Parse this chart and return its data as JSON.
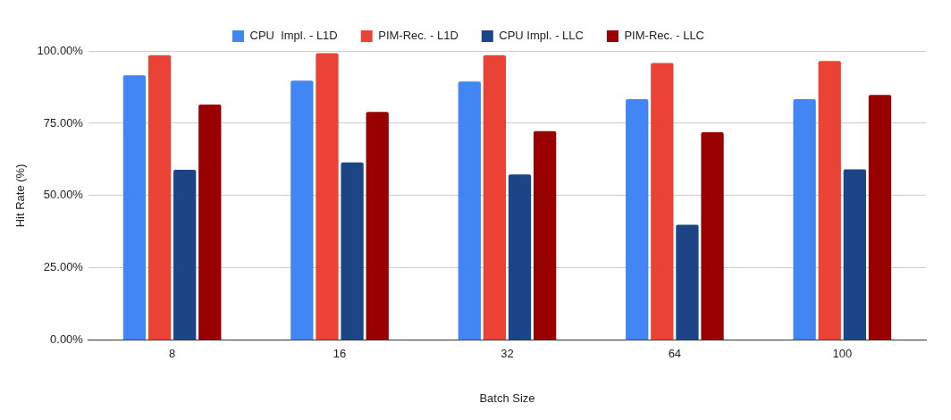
{
  "chart_data": {
    "type": "bar",
    "xlabel": "Batch Size",
    "ylabel": "Hit Rate (%)",
    "categories": [
      "8",
      "16",
      "32",
      "64",
      "100"
    ],
    "series": [
      {
        "name": "CPU  Impl. - L1D",
        "color": "#4285f4",
        "values": [
          91.6,
          89.7,
          89.4,
          83.3,
          83.3
        ]
      },
      {
        "name": "PIM-Rec. - L1D",
        "color": "#ea4335",
        "values": [
          98.5,
          99.2,
          98.5,
          95.8,
          96.5
        ]
      },
      {
        "name": "CPU Impl. - LLC",
        "color": "#1c4587",
        "values": [
          58.9,
          61.5,
          57.3,
          39.9,
          59.1
        ]
      },
      {
        "name": "PIM-Rec. - LLC",
        "color": "#990000",
        "values": [
          81.5,
          78.9,
          72.3,
          71.9,
          84.8
        ]
      }
    ],
    "ylim": [
      0,
      100
    ],
    "yticks": [
      {
        "value": 0,
        "label": "0.00%"
      },
      {
        "value": 25,
        "label": "25.00%"
      },
      {
        "value": 50,
        "label": "50.00%"
      },
      {
        "value": 75,
        "label": "75.00%"
      },
      {
        "value": 100,
        "label": "100.00%"
      }
    ],
    "grid": "y",
    "legend": "top"
  }
}
